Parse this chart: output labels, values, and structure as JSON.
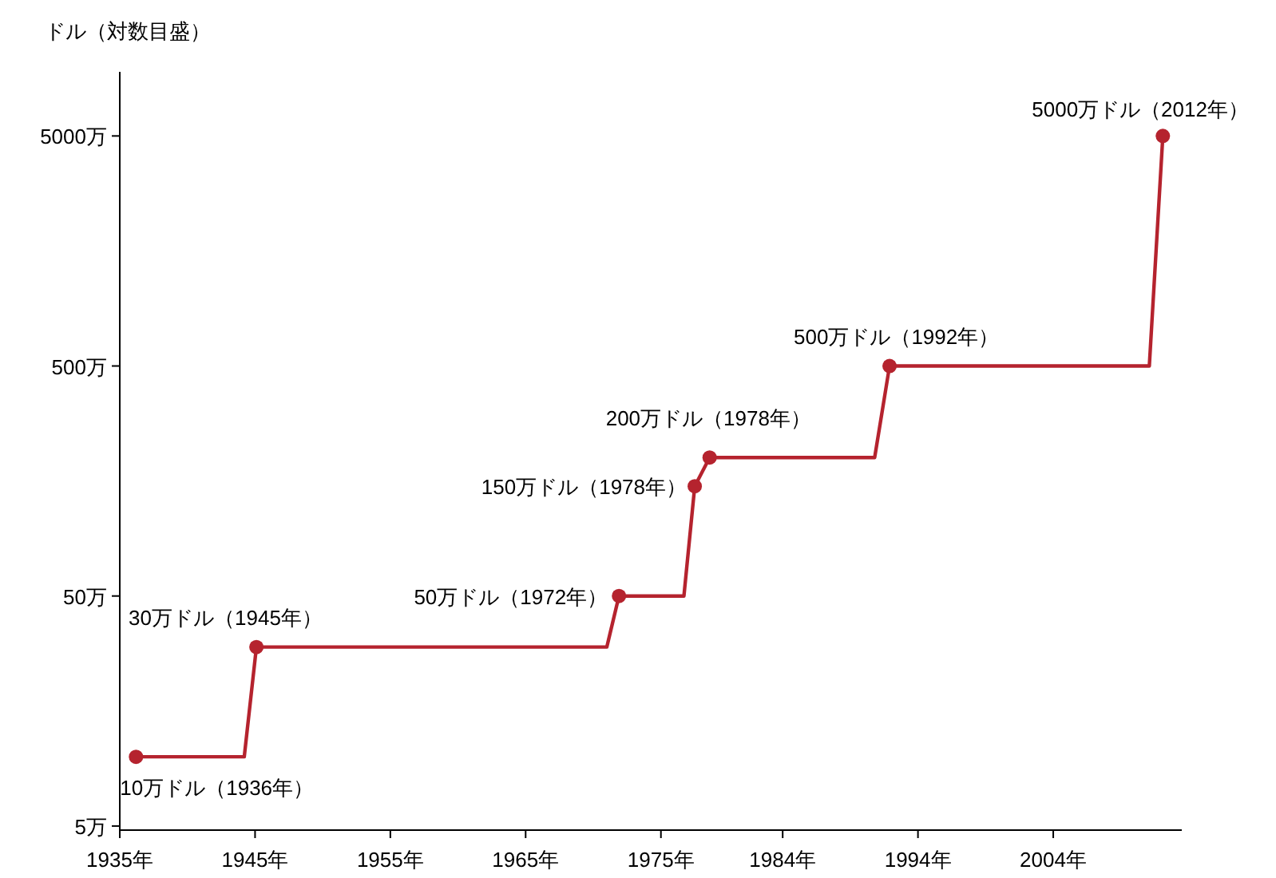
{
  "chart_data": {
    "type": "line",
    "ylabel": "ドル（対数目盛）",
    "log": "y",
    "series": [
      {
        "color": "#b5232e",
        "x": [
          1936.2,
          1944.2,
          1945.1,
          1971.0,
          1971.9,
          1976.7,
          1977.5,
          1978.6,
          1990.8,
          1991.9,
          2011.1,
          2012.1
        ],
        "values": [
          10,
          10,
          30,
          30,
          50,
          50,
          150,
          200,
          200,
          500,
          500,
          5000
        ]
      },
      {
        "type": "scatter",
        "marker": "circle",
        "color": "#b5232e",
        "x": [
          1936.2,
          1945.1,
          1971.9,
          1977.5,
          1978.6,
          1991.9,
          2012.1
        ],
        "values": [
          10,
          30,
          50,
          150,
          200,
          500,
          5000
        ]
      }
    ],
    "xlim": [
      1935,
      2013.5
    ],
    "xticks": [
      {
        "value": 1935,
        "label": "1935年"
      },
      {
        "value": 1945,
        "label": "1945年"
      },
      {
        "value": 1955,
        "label": "1955年"
      },
      {
        "value": 1965,
        "label": "1965年"
      },
      {
        "value": 1975,
        "label": "1975年"
      },
      {
        "value": 1984,
        "label": "1984年"
      },
      {
        "value": 1994,
        "label": "1994年"
      },
      {
        "value": 2004,
        "label": "2004年"
      }
    ],
    "ylim": [
      4.8,
      9500
    ],
    "yticks": [
      {
        "value": 5,
        "label": "5万"
      },
      {
        "value": 50,
        "label": "50万"
      },
      {
        "value": 500,
        "label": "500万"
      },
      {
        "value": 5000,
        "label": "5000万"
      }
    ],
    "annotations": [
      {
        "text": "10万ドル（1936年）",
        "x": 1936.2,
        "y": 10
      },
      {
        "text": "30万ドル（1945年）",
        "x": 1945.1,
        "y": 30
      },
      {
        "text": "50万ドル（1972年）",
        "x": 1971.9,
        "y": 50
      },
      {
        "text": "150万ドル（1978年）",
        "x": 1977.5,
        "y": 150
      },
      {
        "text": "200万ドル（1978年）",
        "x": 1978.6,
        "y": 200
      },
      {
        "text": "500万ドル（1992年）",
        "x": 1991.9,
        "y": 500
      },
      {
        "text": "5000万ドル（2012年）",
        "x": 2012.1,
        "y": 5000
      }
    ]
  }
}
